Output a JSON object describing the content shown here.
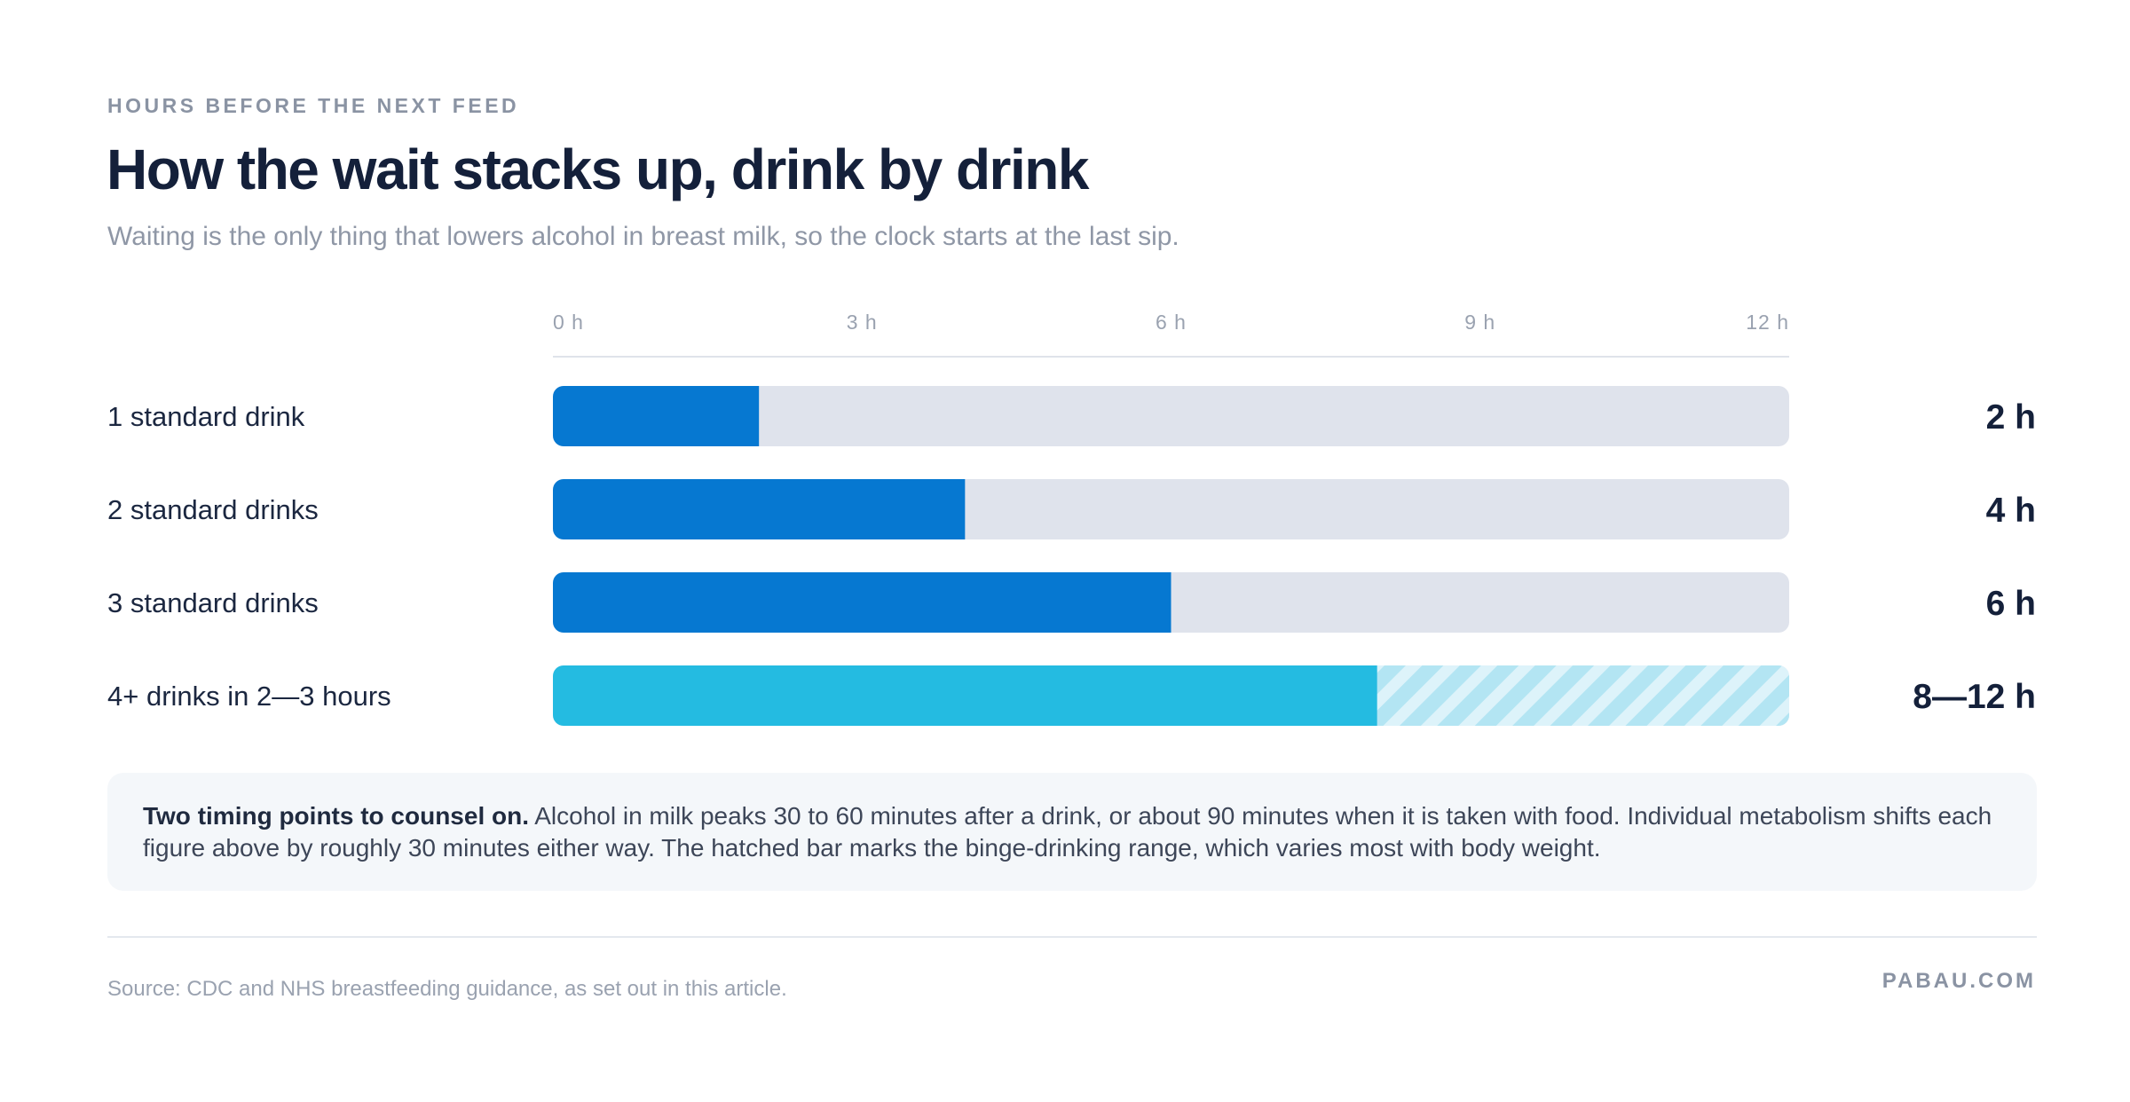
{
  "header": {
    "eyebrow": "HOURS BEFORE THE NEXT FEED",
    "title": "How the wait stacks up, drink by drink",
    "subtitle": "Waiting is the only thing that lowers alcohol in breast milk, so the clock starts at the last sip."
  },
  "chart_data": {
    "type": "bar",
    "orientation": "horizontal",
    "xlim": [
      0,
      12
    ],
    "ticks": [
      0,
      3,
      6,
      9,
      12
    ],
    "tick_labels": [
      "0 h",
      "3 h",
      "6 h",
      "9 h",
      "12 h"
    ],
    "grid": false,
    "categories": [
      "1 standard drink",
      "2 standard drinks",
      "3 standard drinks",
      "4+ drinks in 2—3 hours"
    ],
    "values": [
      2,
      4,
      6,
      8
    ],
    "range_end": [
      null,
      null,
      null,
      12
    ],
    "value_labels": [
      "2 h",
      "4 h",
      "6 h",
      "8—12 h"
    ],
    "colors": {
      "standard": "#0678d1",
      "binge": "#24bbe1",
      "binge_hatch": "#b3e5f3",
      "track": "#dfe3ec"
    }
  },
  "note": {
    "lead": "Two timing points to counsel on.",
    "body": " Alcohol in milk peaks 30 to 60 minutes after a drink, or about 90 minutes when it is taken with food. Individual metabolism shifts each figure above by roughly 30 minutes either way. The hatched bar marks the binge-drinking range, which varies most with body weight."
  },
  "footer": {
    "source": "Source: CDC and NHS breastfeeding guidance, as set out in this article.",
    "brand": "PABAU.COM"
  }
}
